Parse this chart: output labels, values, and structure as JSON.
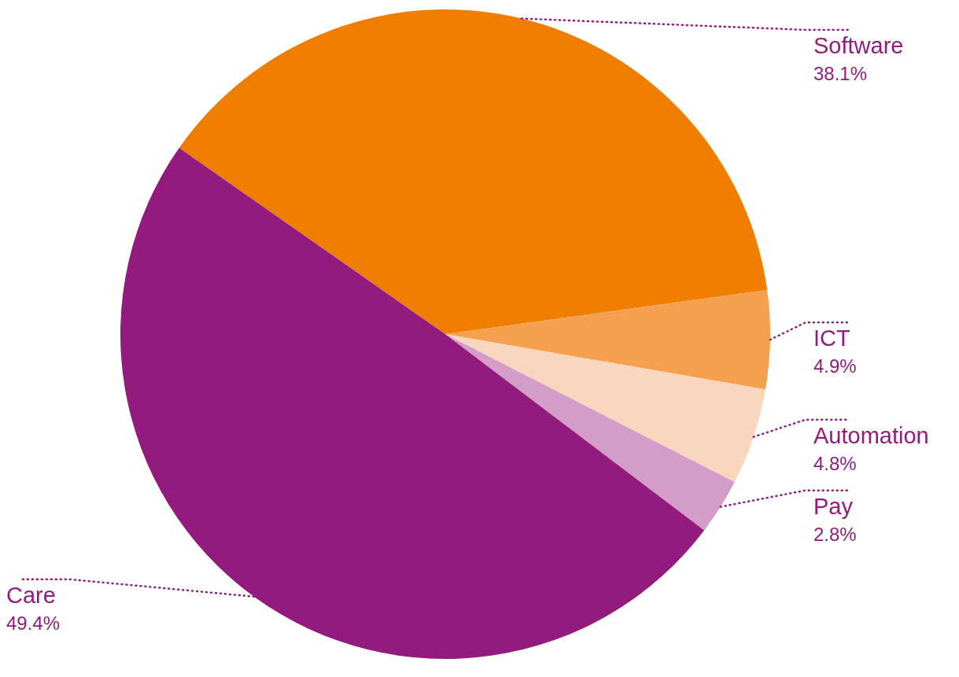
{
  "chart_data": {
    "type": "pie",
    "categories": [
      "Software",
      "ICT",
      "Automation",
      "Pay",
      "Care"
    ],
    "values": [
      38.1,
      4.9,
      4.8,
      2.8,
      49.4
    ],
    "colors": [
      "#ef7d00",
      "#f4a04f",
      "#f8d5bd",
      "#d49dc8",
      "#931b7e"
    ],
    "value_labels": [
      "38.1%",
      "4.9%",
      "4.8%",
      "2.8%",
      "49.4%"
    ]
  }
}
